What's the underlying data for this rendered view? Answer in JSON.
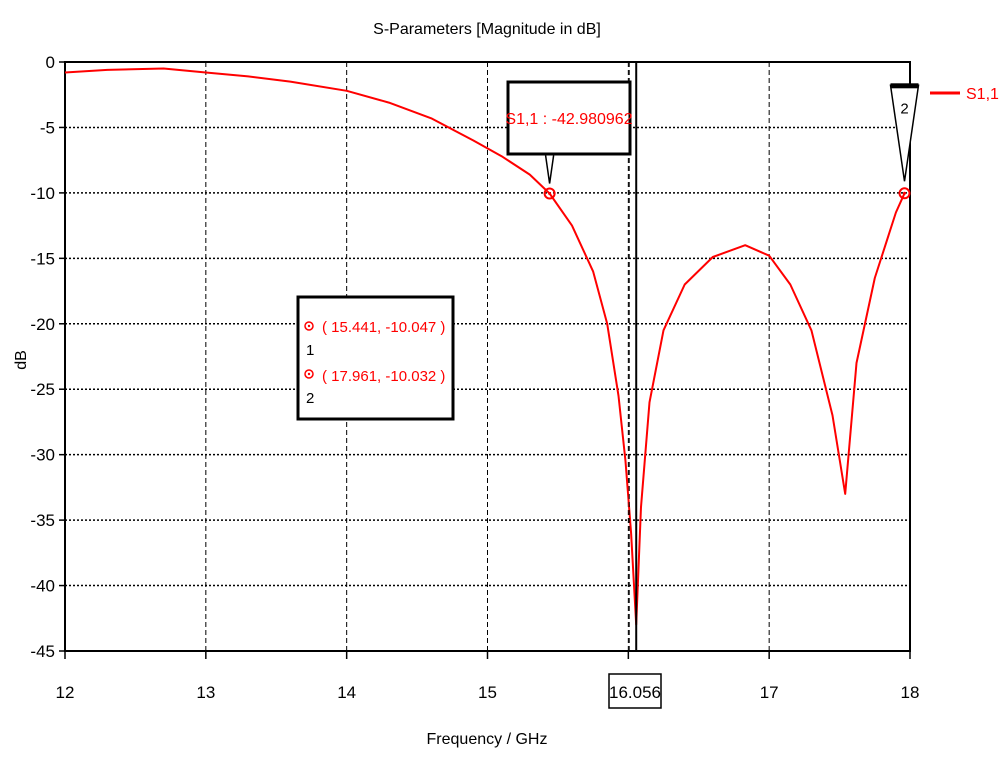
{
  "chart_data": {
    "type": "line",
    "title": "S-Parameters [Magnitude in dB]",
    "xlabel": "Frequency / GHz",
    "ylabel": "dB",
    "xlim": [
      12,
      18
    ],
    "ylim": [
      -45,
      0
    ],
    "x_ticks": [
      12,
      13,
      14,
      15,
      16,
      17,
      18
    ],
    "y_ticks": [
      0,
      -5,
      -10,
      -15,
      -20,
      -25,
      -30,
      -35,
      -40,
      -45
    ],
    "grid": true,
    "legend_position": "top-right",
    "series": [
      {
        "name": "S1,1",
        "color": "#ff0000",
        "x": [
          12.0,
          12.3,
          12.7,
          13.0,
          13.3,
          13.6,
          14.0,
          14.3,
          14.6,
          14.9,
          15.1,
          15.3,
          15.441,
          15.6,
          15.75,
          15.85,
          15.93,
          15.98,
          16.02,
          16.056,
          16.09,
          16.15,
          16.25,
          16.4,
          16.6,
          16.83,
          17.0,
          17.15,
          17.3,
          17.45,
          17.54,
          17.62,
          17.75,
          17.9,
          17.961
        ],
        "y": [
          -0.8,
          -0.6,
          -0.5,
          -0.8,
          -1.1,
          -1.5,
          -2.2,
          -3.1,
          -4.3,
          -6.0,
          -7.2,
          -8.6,
          -10.047,
          -12.5,
          -16.0,
          -20.0,
          -25.5,
          -30.5,
          -36.0,
          -42.98,
          -34.0,
          -26.0,
          -20.5,
          -17.0,
          -14.9,
          -14.0,
          -14.8,
          -17.0,
          -20.5,
          -27.0,
          -33.0,
          -23.0,
          -16.5,
          -11.5,
          -10.032
        ]
      }
    ],
    "markers": [
      {
        "id": "1",
        "label": "1",
        "x": 15.441,
        "y": -10.047,
        "text": "( 15.441, -10.047 )"
      },
      {
        "id": "2",
        "label": "2",
        "x": 17.961,
        "y": -10.032,
        "text": "( 17.961, -10.032 )"
      }
    ],
    "cursor": {
      "x": 16.056,
      "label": "16.056",
      "readout": "S1,1 : -42.980962"
    }
  }
}
